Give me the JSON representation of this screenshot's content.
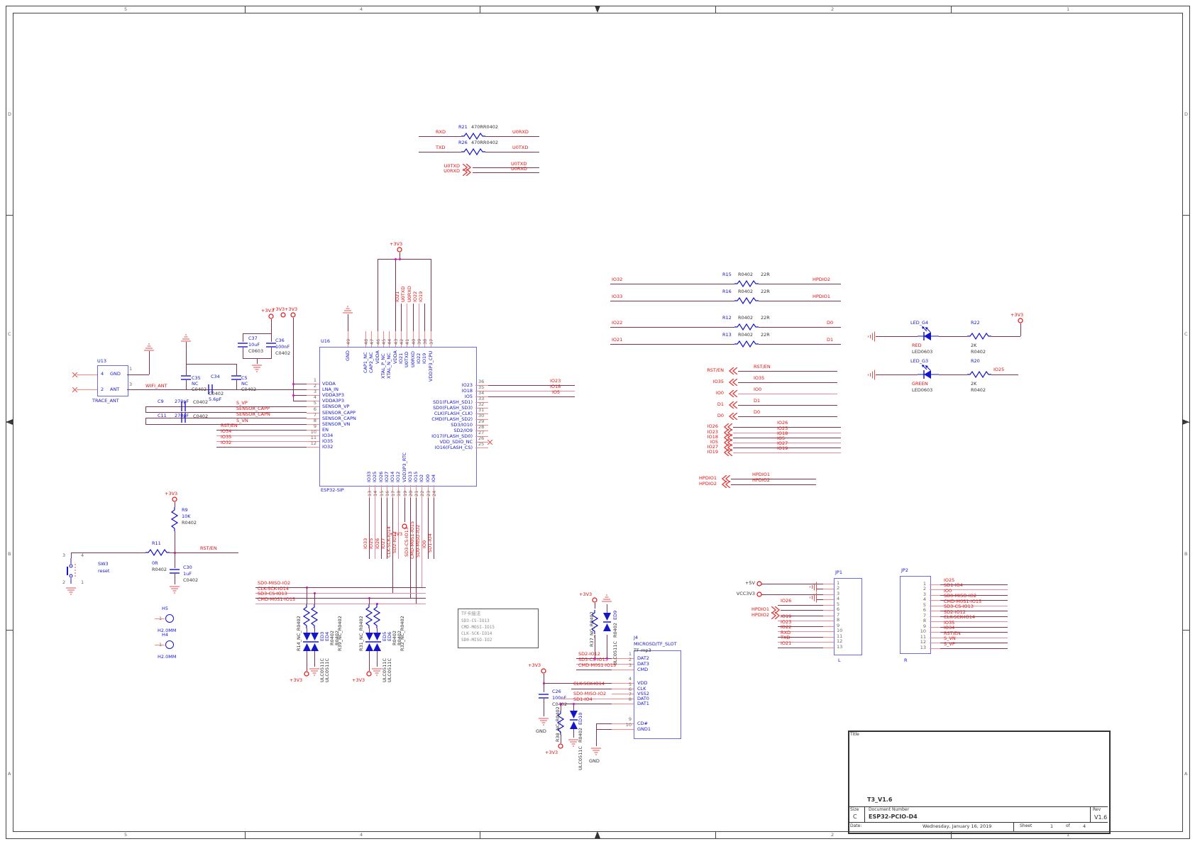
{
  "frame": {
    "zones_h": [
      "5",
      "4",
      "3",
      "2",
      "1"
    ],
    "zones_v": [
      "D",
      "C",
      "B",
      "A"
    ]
  },
  "colors": {
    "wire": "#7c3450",
    "pin": "#ff8585",
    "net": "#e01010",
    "part": "#1515cc",
    "footprint": "#333333",
    "junction": "#e800e8"
  },
  "power": {
    "v33": "+3V3",
    "v5": "+5V",
    "vcc": "VCC3V3",
    "gnd": "GND"
  },
  "uart": {
    "rows": [
      {
        "ref": "R21",
        "part": "470RR0402",
        "left": "RXD",
        "right": "U0RXD"
      },
      {
        "ref": "R26",
        "part": "470RR0402",
        "left": "TXD",
        "right": "U0TXD"
      }
    ],
    "offpage": {
      "left": [
        "U0TXD",
        "U0RXD"
      ],
      "right": [
        "U0TXD",
        "U0RXD"
      ]
    }
  },
  "antenna": {
    "u13": {
      "ref": "U13",
      "part": "TRACE_ANT",
      "rows": [
        {
          "n": "4",
          "name": "GND",
          "ext": "1"
        },
        {
          "n": "2",
          "name": "ANT",
          "ext": "3"
        }
      ]
    },
    "net_wifi": "WIFI_ANT",
    "c35": {
      "ref": "C35",
      "value": "NC",
      "fp": "C0402"
    },
    "c34": {
      "ref": "C34",
      "value": "5.6pF",
      "fp": "C0402"
    },
    "c5": {
      "ref": "C5",
      "value": "NC",
      "fp": "C0402"
    },
    "c9": {
      "ref": "C9",
      "value": "270pF",
      "fp": "C0402"
    },
    "c11": {
      "ref": "C11",
      "value": "270pF",
      "fp": "C0402"
    },
    "c37": {
      "ref": "C37",
      "value": "10uF",
      "fp": "C0603"
    },
    "c36": {
      "ref": "C36",
      "value": "100nF",
      "fp": "C0402"
    }
  },
  "chip": {
    "ref": "U16",
    "part": "ESP32-SIP",
    "left_pins": [
      {
        "n": "1",
        "name": "VDDA"
      },
      {
        "n": "2",
        "name": "LNA_IN"
      },
      {
        "n": "3",
        "name": "VDDA3P3"
      },
      {
        "n": "4",
        "name": "VDDA3P3"
      },
      {
        "n": "5",
        "name": "SENSOR_VP"
      },
      {
        "n": "6",
        "name": "SENSOR_CAPP"
      },
      {
        "n": "7",
        "name": "SENSOR_CAPN"
      },
      {
        "n": "8",
        "name": "SENSOR_VN"
      },
      {
        "n": "9",
        "name": "EN"
      },
      {
        "n": "10",
        "name": "IO34"
      },
      {
        "n": "11",
        "name": "IO35"
      },
      {
        "n": "12",
        "name": "IO32"
      }
    ],
    "right_pins": [
      {
        "n": "36",
        "name": "IO23"
      },
      {
        "n": "35",
        "name": "IO18"
      },
      {
        "n": "34",
        "name": "IO5"
      },
      {
        "n": "33",
        "name": "SD1(FLASH_SD1)"
      },
      {
        "n": "32",
        "name": "SD0(FLASH_SD3)"
      },
      {
        "n": "31",
        "name": "CLK(FLASH_CLK)"
      },
      {
        "n": "30",
        "name": "CMD(FLASH_SD2)"
      },
      {
        "n": "29",
        "name": "SD3/IO10"
      },
      {
        "n": "28",
        "name": "SD2/IO9"
      },
      {
        "n": "27",
        "name": "IO17(FLASH_SD0)"
      },
      {
        "n": "26",
        "name": "VDD_SDIO_NC"
      },
      {
        "n": "25",
        "name": "IO16(FLASH_CS)"
      }
    ],
    "top_pins": [
      {
        "n": "49",
        "name": "GND"
      },
      {
        "n": "48",
        "name": "CAP1_NC"
      },
      {
        "n": "47",
        "name": "CAP2_NC"
      },
      {
        "n": "46",
        "name": "VDDA"
      },
      {
        "n": "45",
        "name": "XTAL_P_NC"
      },
      {
        "n": "44",
        "name": "XTAL_N_NC"
      },
      {
        "n": "43",
        "name": "VDDA"
      },
      {
        "n": "42",
        "name": "IO21"
      },
      {
        "n": "41",
        "name": "U0TXD"
      },
      {
        "n": "40",
        "name": "U0RXD"
      },
      {
        "n": "39",
        "name": "IO22"
      },
      {
        "n": "38",
        "name": "IO19"
      },
      {
        "n": "37",
        "name": "VDD3P3_CPU"
      }
    ],
    "bottom_pins": [
      {
        "n": "13",
        "name": "IO33"
      },
      {
        "n": "14",
        "name": "IO25"
      },
      {
        "n": "15",
        "name": "IO26"
      },
      {
        "n": "16",
        "name": "IO27"
      },
      {
        "n": "17",
        "name": "IO14"
      },
      {
        "n": "18",
        "name": "IO12"
      },
      {
        "n": "19",
        "name": "VDD3P3_RTC"
      },
      {
        "n": "20",
        "name": "IO13"
      },
      {
        "n": "21",
        "name": "IO15"
      },
      {
        "n": "22",
        "name": "IO2"
      },
      {
        "n": "23",
        "name": "IO0"
      },
      {
        "n": "24",
        "name": "IO4"
      }
    ],
    "left_nets": [
      "S_VP",
      "SENSOR_CAPP",
      "SENSOR_CAPN",
      "S_VN",
      "RST/EN",
      "IO34",
      "IO35",
      "IO32"
    ],
    "right_nets": [
      "IO23",
      "IO18",
      "IO5"
    ],
    "top_nets": [
      "IO21",
      "U0TXD",
      "U0RXD",
      "IO22",
      "IO19"
    ],
    "bottom_nets": [
      "IO33",
      "IO25",
      "IO26",
      "IO27",
      "CLK-SCK-IO14",
      "SD2-IO12",
      "",
      "SD3-CS-IO13",
      "CMD-M0S1-IO15",
      "SD0-MISO-IO2",
      "IO0",
      "SD1-IO4"
    ]
  },
  "reset": {
    "r9": {
      "ref": "R9",
      "value": "10K",
      "fp": "R0402"
    },
    "r11": {
      "ref": "R11",
      "value": "0R",
      "fp": "R0402"
    },
    "c30": {
      "ref": "C30",
      "value": "1uF",
      "fp": "C0402"
    },
    "sw": {
      "ref": "SW3",
      "value": "reset",
      "pins": [
        "3",
        "4",
        "2",
        "1"
      ]
    },
    "net": "RST/EN"
  },
  "series_res": [
    {
      "ref": "R15",
      "fp": "R0402",
      "value": "22R",
      "left": "IO32",
      "right": "HPDIO2"
    },
    {
      "ref": "R16",
      "fp": "R0402",
      "value": "22R",
      "left": "IO33",
      "right": "HPDIO1"
    },
    {
      "ref": "R12",
      "fp": "R0402",
      "value": "22R",
      "left": "IO22",
      "right": "D0"
    },
    {
      "ref": "R13",
      "fp": "R0402",
      "value": "22R",
      "left": "IO21",
      "right": "D1"
    }
  ],
  "ports1": [
    {
      "l": "RST/EN",
      "rr": "RST/EN"
    },
    {
      "l": "IO35",
      "rr": "IO35"
    },
    {
      "l": "IO0",
      "rr": "IO0"
    },
    {
      "l": "D1",
      "rr": "D1"
    },
    {
      "l": "D0",
      "rr": "D0"
    }
  ],
  "ports2": [
    "IO26",
    "IO23",
    "IO18",
    "IO5",
    "IO27",
    "IO19"
  ],
  "ports3": [
    "HPDIO1",
    "HPDIO2"
  ],
  "leds": [
    {
      "ref": "LED_G4",
      "color_name": "RED",
      "fp": "LED0603",
      "res_ref": "R22",
      "res_value": "2K",
      "res_fp": "R0402",
      "net": "+3V3"
    },
    {
      "ref": "LED_G3",
      "color_name": "GREEN",
      "fp": "LED0603",
      "res_ref": "R20",
      "res_value": "2K",
      "res_fp": "R0402",
      "net": "IO25"
    }
  ],
  "jp1": {
    "ref": "JP1",
    "tag": "L",
    "nums": [
      "1",
      "2",
      "3",
      "4",
      "5",
      "6",
      "7",
      "8",
      "9",
      "10",
      "11",
      "12",
      "13"
    ],
    "signals": [
      "+5V",
      "GND",
      "VCC3V3",
      "GND",
      "IO26",
      "HPDIO1",
      "HPDIO2",
      "IO19",
      "IO23",
      "IO22",
      "RXD",
      "TXD",
      "IO21"
    ]
  },
  "jp2": {
    "ref": "JP2",
    "tag": "R",
    "nums": [
      "1",
      "2",
      "3",
      "4",
      "5",
      "6",
      "7",
      "8",
      "9",
      "10",
      "11",
      "12",
      "13"
    ],
    "signals": [
      "IO25",
      "SD1-IO4",
      "IO0",
      "SD0-MISO-IO2",
      "CMD-M0S1-IO15",
      "SD3-CS-IO13",
      "SD2-IO12",
      "CLK-SCK-IO14",
      "IO35",
      "IO34",
      "RST/EN",
      "S_VN",
      "S_VP"
    ]
  },
  "microsd": {
    "ref": "J4",
    "name": "MICROSD/TF_SLOT",
    "value": "TF-mp3",
    "pins": [
      {
        "n": "1",
        "name": "DAT2",
        "net": "SD2-IO12"
      },
      {
        "n": "2",
        "name": "DAT3",
        "net": "SD3-CS-IO13"
      },
      {
        "n": "3",
        "name": "CMD",
        "net": "CMD-M0S1-IO15"
      },
      {
        "n": "4",
        "name": "VDD",
        "net": ""
      },
      {
        "n": "5",
        "name": "CLK",
        "net": "CLK-SCK-IO14"
      },
      {
        "n": "6",
        "name": "VSS2",
        "net": ""
      },
      {
        "n": "7",
        "name": "DAT0",
        "net": "SD0-MISO-IO2"
      },
      {
        "n": "8",
        "name": "DAT1",
        "net": "SD1-IO4"
      },
      {
        "n": "9",
        "name": "CD#",
        "net": ""
      },
      {
        "n": "10",
        "name": "GND1",
        "net": ""
      }
    ],
    "c26": {
      "ref": "C26",
      "value": "100nF",
      "fp": "C0402"
    },
    "esd_top": {
      "res": "R37_NC_R0402",
      "ref": "ED9",
      "part": "ULC0511C",
      "fp": "R0402"
    },
    "esd_bottom": {
      "res": "R38_NC_R0402",
      "ref": "ED10",
      "part": "ULC0511C",
      "fp": "R0402"
    }
  },
  "note": {
    "title": "TF卡接法",
    "lines": [
      "SD3-CS-IO13",
      "CMD-MOSI-IO15",
      "CLK-SCK-IO14",
      "SD0-MISO-IO2"
    ]
  },
  "esd_array": {
    "bus": [
      "SD0-MISO-IO2",
      "CLK-SCK-IO14",
      "SD3-CS-IO13",
      "CMD-M0S1-IO15"
    ],
    "groups": [
      {
        "res_l": "R14_NC_R0402",
        "res_r": "R39_NC_R0402",
        "d1": "ED3",
        "d2": "ED4",
        "part": "ULC0511C",
        "fp": "R0402"
      },
      {
        "res_l": "R31_NC_R0402",
        "res_r": "R32_NC_R0402",
        "d1": "ED5",
        "d2": "ED6",
        "part": "ULC0511C",
        "fp": "R0402"
      }
    ]
  },
  "mounting": [
    {
      "ref": "H5",
      "pin": "1",
      "value": "H2.0MM"
    },
    {
      "ref": "H4",
      "pin": "1",
      "value": "H2.0MM"
    }
  ],
  "titleblock": {
    "title_label": "Title",
    "title": "T3_V1.6",
    "size_label": "Size",
    "size": "C",
    "doc_label": "Document Number",
    "doc": "ESP32-PCIO-D4",
    "rev_label": "Rev",
    "rev": "V1.6",
    "date_label": "Date:",
    "date": "Wednesday, January 16, 2019",
    "sheet_label": "Sheet",
    "sheet": "1",
    "of_label": "of",
    "total": "4"
  }
}
